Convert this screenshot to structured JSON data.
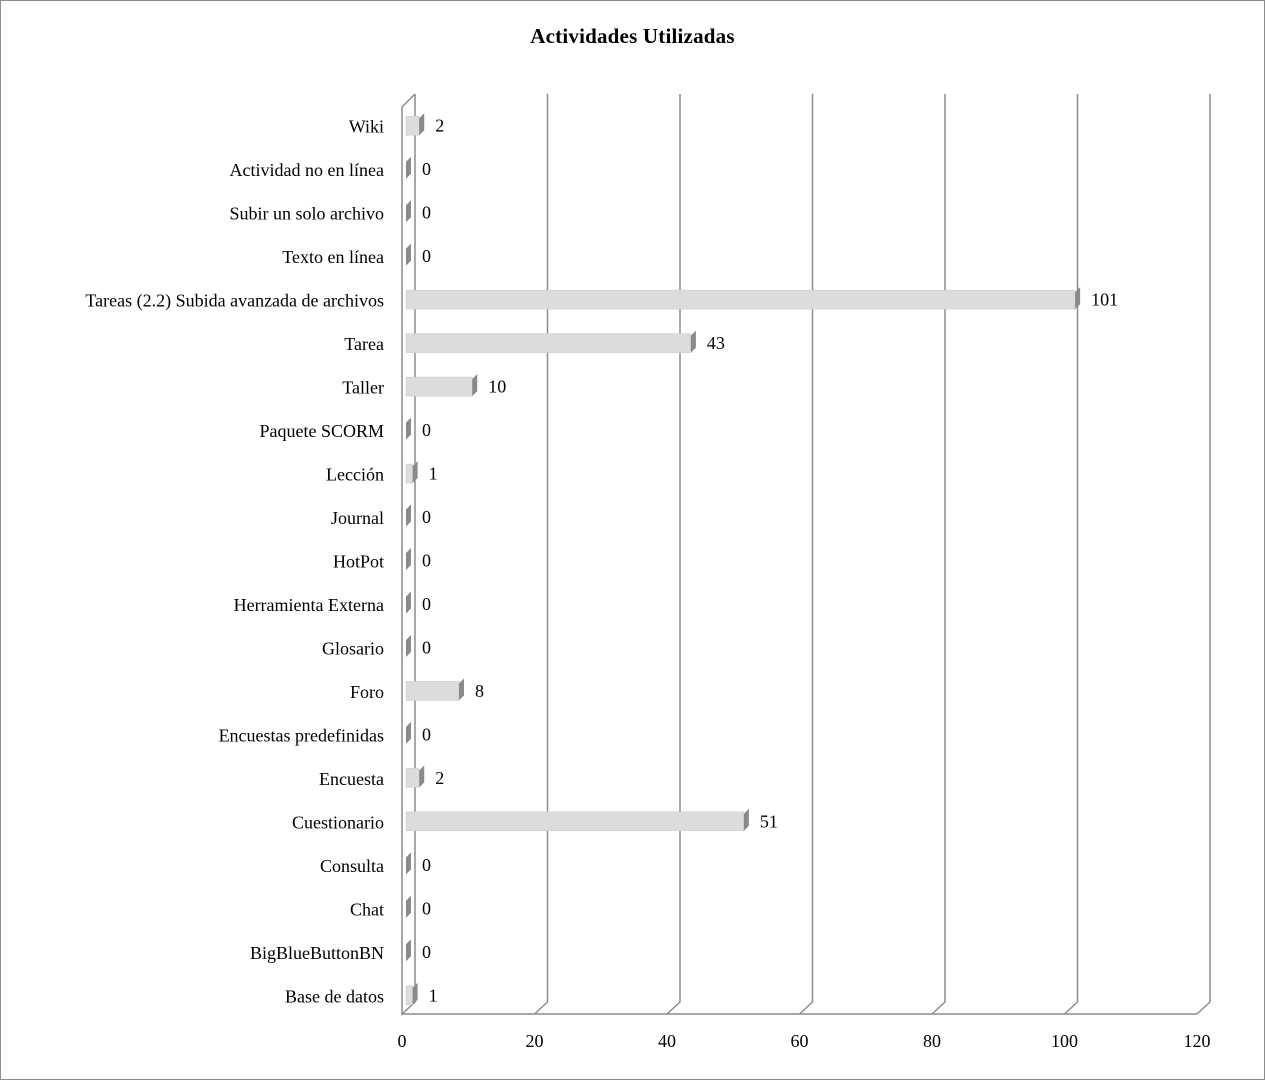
{
  "chart_data": {
    "type": "bar",
    "orientation": "horizontal",
    "title": "Actividades Utilizadas",
    "xlabel": "",
    "ylabel": "",
    "xlim": [
      0,
      120
    ],
    "x_ticks": [
      0,
      20,
      40,
      60,
      80,
      100,
      120
    ],
    "grid": true,
    "legend": "none",
    "categories": [
      "Wiki",
      "Actividad no en línea",
      "Subir un solo archivo",
      "Texto en línea",
      "Tareas (2.2) Subida avanzada de archivos",
      "Tarea",
      "Taller",
      "Paquete SCORM",
      "Lección",
      "Journal",
      "HotPot",
      "Herramienta Externa",
      "Glosario",
      "Foro",
      "Encuestas predefinidas",
      "Encuesta",
      "Cuestionario",
      "Consulta",
      "Chat",
      "BigBlueButtonBN",
      "Base de datos"
    ],
    "values": [
      2,
      0,
      0,
      0,
      101,
      43,
      10,
      0,
      1,
      0,
      0,
      0,
      0,
      8,
      0,
      2,
      51,
      0,
      0,
      0,
      1
    ],
    "colors": {
      "bar_face": "#dcdcdc",
      "bar_side": "#8a8a8a",
      "grid": "#8c8c8c",
      "frame": "#8c8c8c"
    }
  }
}
